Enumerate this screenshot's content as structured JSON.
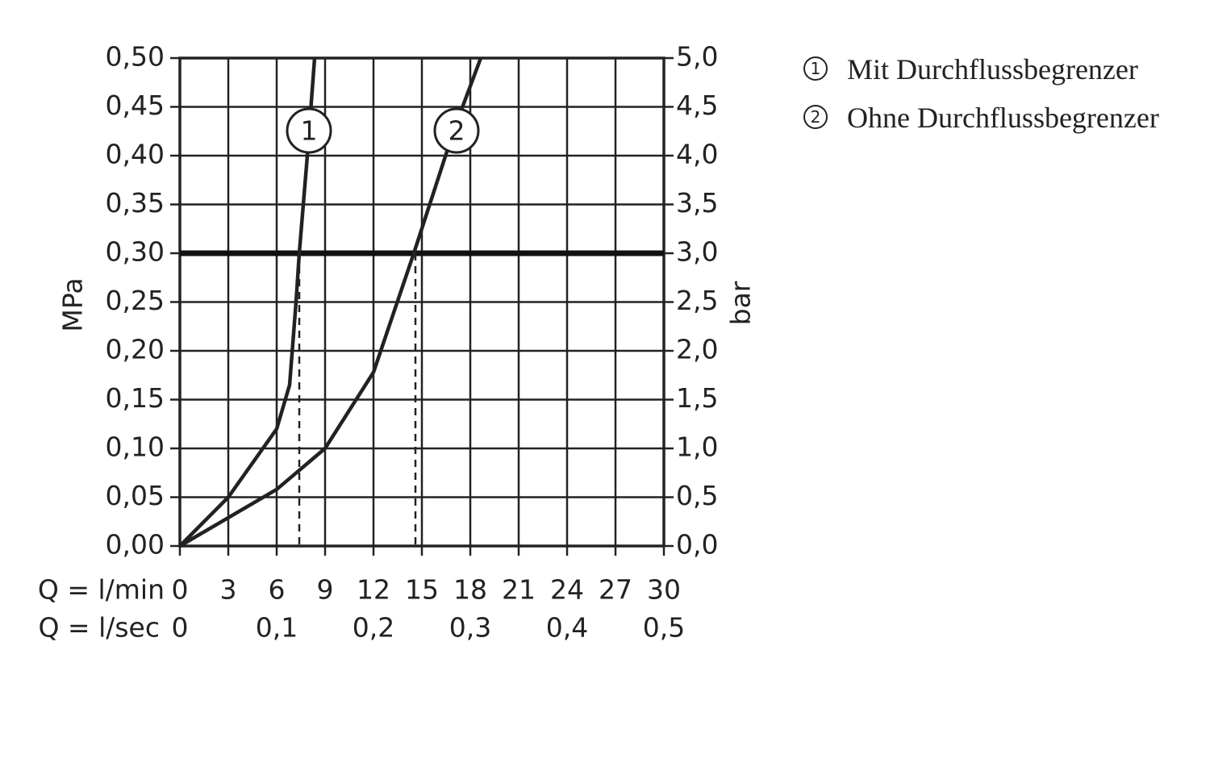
{
  "chart_data": {
    "type": "line",
    "xlabel": "Q = l/min",
    "x2label": "Q = l/sec",
    "ylabel": "MPa",
    "y2label": "bar",
    "xlim": [
      0,
      30
    ],
    "xticks": [
      0,
      3,
      6,
      9,
      12,
      15,
      18,
      21,
      24,
      27,
      30
    ],
    "x2lim": [
      0,
      0.5
    ],
    "x2ticks": [
      0,
      {
        "value": 0.1,
        "label": "0,1"
      },
      {
        "value": 0.2,
        "label": "0,2"
      },
      {
        "value": 0.3,
        "label": "0,3"
      },
      {
        "value": 0.4,
        "label": "0,4"
      },
      {
        "value": 0.5,
        "label": "0,5"
      }
    ],
    "ylim": [
      0,
      0.5
    ],
    "yticks": [
      {
        "value": 0,
        "label": "0,00"
      },
      {
        "value": 0.05,
        "label": "0,05"
      },
      {
        "value": 0.1,
        "label": "0,10"
      },
      {
        "value": 0.15,
        "label": "0,15"
      },
      {
        "value": 0.2,
        "label": "0,20"
      },
      {
        "value": 0.25,
        "label": "0,25"
      },
      {
        "value": 0.3,
        "label": "0,30"
      },
      {
        "value": 0.35,
        "label": "0,35"
      },
      {
        "value": 0.4,
        "label": "0,40"
      },
      {
        "value": 0.45,
        "label": "0,45"
      },
      {
        "value": 0.5,
        "label": "0,50"
      }
    ],
    "y2lim": [
      0,
      5
    ],
    "y2ticks": [
      {
        "value": 0,
        "label": "0,0"
      },
      {
        "value": 0.5,
        "label": "0,5"
      },
      {
        "value": 1,
        "label": "1,0"
      },
      {
        "value": 1.5,
        "label": "1,5"
      },
      {
        "value": 2,
        "label": "2,0"
      },
      {
        "value": 2.5,
        "label": "2,5"
      },
      {
        "value": 3,
        "label": "3,0"
      },
      {
        "value": 3.5,
        "label": "3,5"
      },
      {
        "value": 4,
        "label": "4,0"
      },
      {
        "value": 4.5,
        "label": "4,5"
      },
      {
        "value": 5,
        "label": "5,0"
      }
    ],
    "grid": true,
    "reference_line": 0.3,
    "drop_lines": [
      7.4,
      14.6
    ],
    "series": [
      {
        "label": "1",
        "name": "Mit Durchflussbegrenzer",
        "color": "#222222",
        "x": [
          0,
          3,
          6,
          6.8,
          7.2,
          7.4,
          7.9,
          8.35
        ],
        "values": [
          0,
          0.05,
          0.12,
          0.165,
          0.25,
          0.3,
          0.4,
          0.5
        ]
      },
      {
        "label": "2",
        "name": "Ohne Durchflussbegrenzer",
        "color": "#222222",
        "x": [
          0,
          6,
          9,
          12,
          14.5,
          17,
          18.65
        ],
        "values": [
          0,
          0.058,
          0.1,
          0.178,
          0.3,
          0.427,
          0.5
        ]
      }
    ]
  }
}
